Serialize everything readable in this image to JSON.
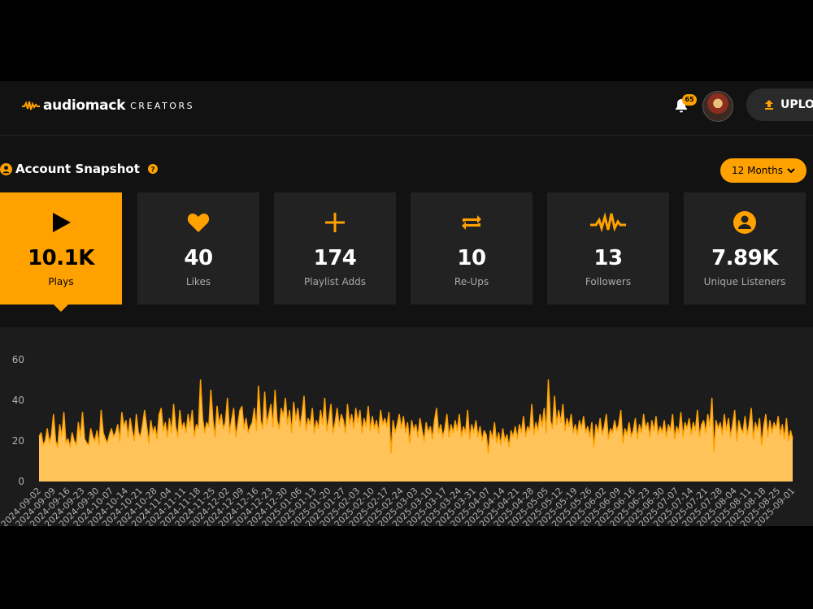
{
  "header": {
    "logo": "audiomack",
    "logo_sub": "CREATORS",
    "notification_count": "65",
    "upload": "UPLOAD"
  },
  "snapshot": {
    "title": "Account Snapshot",
    "range": "12 Months",
    "stats": [
      {
        "value": "10.1K",
        "label": "Plays"
      },
      {
        "value": "40",
        "label": "Likes"
      },
      {
        "value": "174",
        "label": "Playlist Adds"
      },
      {
        "value": "10",
        "label": "Re-Ups"
      },
      {
        "value": "13",
        "label": "Followers"
      },
      {
        "value": "7.89K",
        "label": "Unique Listeners"
      }
    ]
  },
  "chart_data": {
    "type": "area",
    "color": "#ffa200",
    "fill": "#ffc35a",
    "ylim": [
      0,
      60
    ],
    "yticks": [
      0,
      20,
      40,
      60
    ],
    "categories": [
      "2024-09-02",
      null,
      null,
      null,
      null,
      null,
      null,
      "2024-09-09",
      null,
      null,
      null,
      null,
      null,
      null,
      "2024-09-16",
      null,
      null,
      null,
      null,
      null,
      null,
      "2024-09-23",
      null,
      null,
      null,
      null,
      null,
      null,
      "2024-09-30",
      null,
      null,
      null,
      null,
      null,
      null,
      "2024-10-07",
      null,
      null,
      null,
      null,
      null,
      null,
      "2024-10-14",
      null,
      null,
      null,
      null,
      null,
      null,
      "2024-10-21",
      null,
      null,
      null,
      null,
      null,
      null,
      "2024-10-28",
      null,
      null,
      null,
      null,
      null,
      null,
      "2024-11-04",
      null,
      null,
      null,
      null,
      null,
      null,
      "2024-11-11",
      null,
      null,
      null,
      null,
      null,
      null,
      "2024-11-18",
      null,
      null,
      null,
      null,
      null,
      null,
      "2024-11-25",
      null,
      null,
      null,
      null,
      null,
      null,
      "2024-12-02",
      null,
      null,
      null,
      null,
      null,
      null,
      "2024-12-09",
      null,
      null,
      null,
      null,
      null,
      null,
      "2024-12-16",
      null,
      null,
      null,
      null,
      null,
      null,
      "2024-12-23",
      null,
      null,
      null,
      null,
      null,
      null,
      "2024-12-30",
      null,
      null,
      null,
      null,
      null,
      null,
      "2025-01-06",
      null,
      null,
      null,
      null,
      null,
      null,
      "2025-01-13",
      null,
      null,
      null,
      null,
      null,
      null,
      "2025-01-20",
      null,
      null,
      null,
      null,
      null,
      null,
      "2025-01-27",
      null,
      null,
      null,
      null,
      null,
      null,
      "2025-02-03",
      null,
      null,
      null,
      null,
      null,
      null,
      "2025-02-10",
      null,
      null,
      null,
      null,
      null,
      null,
      "2025-02-17",
      null,
      null,
      null,
      null,
      null,
      null,
      "2025-02-24",
      null,
      null,
      null,
      null,
      null,
      null,
      "2025-03-03",
      null,
      null,
      null,
      null,
      null,
      null,
      "2025-03-10",
      null,
      null,
      null,
      null,
      null,
      null,
      "2025-03-17",
      null,
      null,
      null,
      null,
      null,
      null,
      "2025-03-24",
      null,
      null,
      null,
      null,
      null,
      null,
      "2025-03-31",
      null,
      null,
      null,
      null,
      null,
      null,
      "2025-04-07",
      null,
      null,
      null,
      null,
      null,
      null,
      "2025-04-14",
      null,
      null,
      null,
      null,
      null,
      null,
      "2025-04-21",
      null,
      null,
      null,
      null,
      null,
      null,
      "2025-04-28",
      null,
      null,
      null,
      null,
      null,
      null,
      "2025-05-05",
      null,
      null,
      null,
      null,
      null,
      null,
      "2025-05-12",
      null,
      null,
      null,
      null,
      null,
      null,
      "2025-05-19",
      null,
      null,
      null,
      null,
      null,
      null,
      "2025-05-26",
      null,
      null,
      null,
      null,
      null,
      null,
      "2025-06-02",
      null,
      null,
      null,
      null,
      null,
      null,
      "2025-06-09",
      null,
      null,
      null,
      null,
      null,
      null,
      "2025-06-16",
      null,
      null,
      null,
      null,
      null,
      null,
      "2025-06-23",
      null,
      null,
      null,
      null,
      null,
      null,
      "2025-06-30",
      null,
      null,
      null,
      null,
      null,
      null,
      "2025-07-07",
      null,
      null,
      null,
      null,
      null,
      null,
      "2025-07-14",
      null,
      null,
      null,
      null,
      null,
      null,
      "2025-07-21",
      null,
      null,
      null,
      null,
      null,
      null,
      "2025-07-28",
      null,
      null,
      null,
      null,
      null,
      null,
      "2025-08-04",
      null,
      null,
      null,
      null,
      null,
      null,
      "2025-08-11",
      null,
      null,
      null,
      null,
      null,
      null,
      "2025-08-18",
      null,
      null,
      null,
      null,
      null,
      null,
      "2025-08-25",
      null,
      null,
      null,
      null,
      null,
      null,
      "2025-09-01"
    ],
    "values": [
      22,
      24,
      18,
      20,
      26,
      19,
      23,
      33,
      20,
      17,
      28,
      22,
      34,
      19,
      21,
      17,
      24,
      20,
      18,
      29,
      22,
      34,
      21,
      19,
      18,
      26,
      22,
      20,
      25,
      18,
      35,
      24,
      21,
      19,
      23,
      26,
      22,
      24,
      28,
      20,
      34,
      27,
      30,
      22,
      31,
      25,
      20,
      33,
      24,
      22,
      28,
      35,
      27,
      19,
      30,
      24,
      27,
      21,
      33,
      36,
      25,
      29,
      22,
      31,
      24,
      38,
      27,
      22,
      35,
      26,
      29,
      24,
      33,
      27,
      35,
      22,
      28,
      26,
      50,
      31,
      24,
      29,
      27,
      45,
      30,
      22,
      37,
      28,
      33,
      26,
      29,
      41,
      24,
      30,
      36,
      22,
      28,
      35,
      37,
      26,
      31,
      24,
      27,
      29,
      36,
      25,
      47,
      30,
      26,
      44,
      28,
      33,
      38,
      27,
      45,
      30,
      26,
      36,
      32,
      41,
      28,
      35,
      24,
      39,
      30,
      36,
      27,
      33,
      42,
      25,
      31,
      28,
      36,
      24,
      30,
      26,
      35,
      28,
      41,
      25,
      31,
      38,
      24,
      29,
      36,
      27,
      33,
      30,
      24,
      38,
      28,
      33,
      26,
      36,
      29,
      35,
      24,
      31,
      27,
      37,
      25,
      32,
      26,
      30,
      24,
      35,
      28,
      31,
      27,
      34,
      14,
      30,
      24,
      28,
      33,
      26,
      32,
      24,
      29,
      19,
      30,
      25,
      28,
      22,
      31,
      25,
      20,
      29,
      24,
      27,
      21,
      30,
      36,
      24,
      28,
      22,
      26,
      33,
      22,
      28,
      24,
      30,
      25,
      33,
      22,
      27,
      24,
      35,
      21,
      28,
      24,
      30,
      22,
      27,
      20,
      25,
      23,
      14,
      25,
      21,
      29,
      19,
      24,
      18,
      26,
      20,
      23,
      17,
      25,
      22,
      27,
      21,
      28,
      24,
      32,
      22,
      27,
      25,
      38,
      23,
      29,
      25,
      33,
      27,
      36,
      24,
      50,
      30,
      26,
      42,
      28,
      35,
      29,
      38,
      25,
      31,
      27,
      33,
      24,
      28,
      23,
      30,
      26,
      32,
      24,
      27,
      22,
      29,
      17,
      28,
      24,
      31,
      23,
      27,
      33,
      21,
      26,
      24,
      30,
      25,
      28,
      35,
      19,
      26,
      23,
      29,
      22,
      25,
      31,
      21,
      28,
      24,
      33,
      26,
      29,
      22,
      30,
      25,
      32,
      23,
      27,
      24,
      30,
      22,
      28,
      25,
      33,
      21,
      27,
      24,
      34,
      22,
      29,
      26,
      31,
      23,
      29,
      25,
      35,
      22,
      28,
      30,
      24,
      33,
      27,
      41,
      15,
      30,
      26,
      29,
      23,
      33,
      25,
      31,
      22,
      28,
      35,
      20,
      30,
      26,
      24,
      32,
      23,
      28,
      36,
      21,
      29,
      25,
      31,
      18,
      27,
      33,
      22,
      30,
      24,
      29,
      26,
      32,
      23,
      28,
      21,
      31,
      20,
      25,
      21
    ]
  }
}
